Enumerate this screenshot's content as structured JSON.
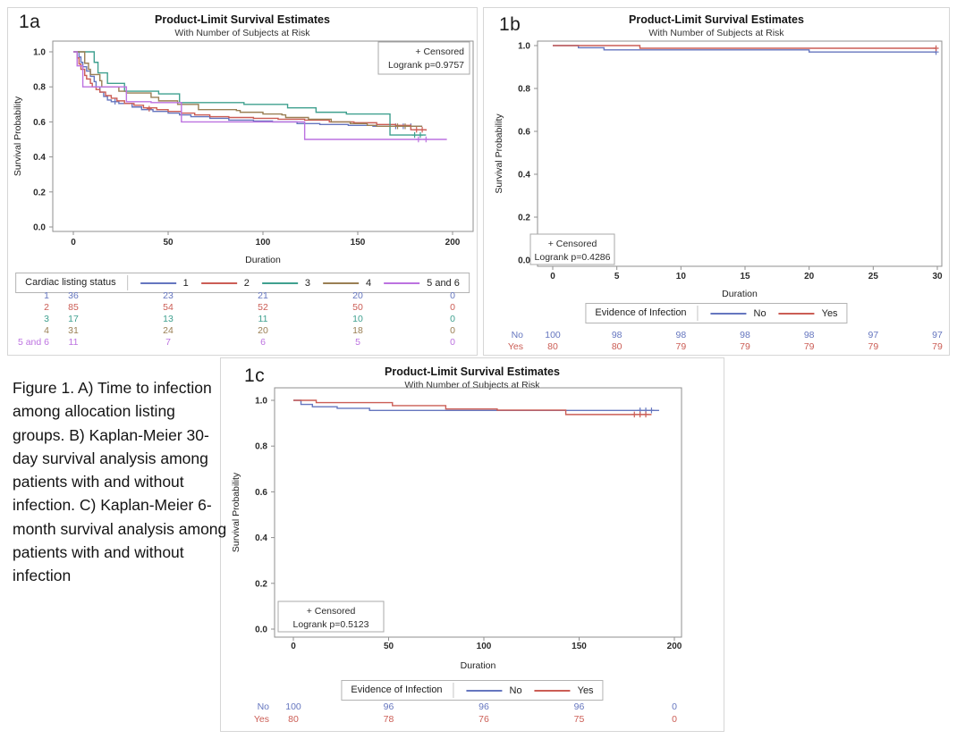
{
  "figure_caption": "Figure 1. A) Time to infection among allocation listing groups. B) Kaplan-Meier 30-day survival analysis among patients with and without infection. C) Kaplan-Meier 6-month survival analysis among patients with and without infection",
  "chart_data": [
    {
      "type": "line",
      "panel_label": "1a",
      "title": "Product-Limit Survival Estimates",
      "subtitle": "With Number of Subjects at Risk",
      "xlabel": "Duration",
      "ylabel": "Survival Probability",
      "xlim": [
        0,
        200
      ],
      "xticks": [
        0,
        50,
        100,
        150,
        200
      ],
      "ylim": [
        0,
        1
      ],
      "yticks": [
        1.0,
        0.8,
        0.6,
        0.4,
        0.2,
        0.0
      ],
      "grid": false,
      "censored_label": "+ Censored",
      "logrank_label": "Logrank p=0.9757",
      "inset_position": "top-right",
      "legend_position": "bottom",
      "legend_title": "Cardiac listing status",
      "series": [
        {
          "name": "1",
          "color": "#6576bf",
          "steps": [
            [
              0,
              1.0
            ],
            [
              3,
              0.97
            ],
            [
              4,
              0.94
            ],
            [
              5,
              0.915
            ],
            [
              7,
              0.89
            ],
            [
              9,
              0.86
            ],
            [
              11,
              0.83
            ],
            [
              12,
              0.8
            ],
            [
              14,
              0.77
            ],
            [
              16,
              0.745
            ],
            [
              18,
              0.725
            ],
            [
              20,
              0.715
            ],
            [
              24,
              0.705
            ],
            [
              31,
              0.685
            ],
            [
              36,
              0.67
            ],
            [
              42,
              0.66
            ],
            [
              50,
              0.65
            ],
            [
              56,
              0.64
            ],
            [
              62,
              0.63
            ],
            [
              72,
              0.62
            ],
            [
              82,
              0.61
            ],
            [
              95,
              0.605
            ],
            [
              105,
              0.6
            ],
            [
              118,
              0.59
            ],
            [
              130,
              0.585
            ],
            [
              145,
              0.58
            ],
            [
              158,
              0.575
            ],
            [
              184,
              0.575
            ]
          ],
          "censors": [
            [
              22,
              0.715
            ],
            [
              170,
              0.575
            ],
            [
              174,
              0.575
            ],
            [
              178,
              0.575
            ]
          ]
        },
        {
          "name": "2",
          "color": "#cb5d55",
          "steps": [
            [
              0,
              1.0
            ],
            [
              2,
              0.965
            ],
            [
              3,
              0.93
            ],
            [
              4,
              0.9
            ],
            [
              6,
              0.865
            ],
            [
              7,
              0.845
            ],
            [
              9,
              0.82
            ],
            [
              10,
              0.8
            ],
            [
              12,
              0.785
            ],
            [
              14,
              0.77
            ],
            [
              17,
              0.75
            ],
            [
              20,
              0.735
            ],
            [
              23,
              0.72
            ],
            [
              27,
              0.705
            ],
            [
              32,
              0.695
            ],
            [
              37,
              0.68
            ],
            [
              44,
              0.67
            ],
            [
              50,
              0.66
            ],
            [
              57,
              0.65
            ],
            [
              64,
              0.64
            ],
            [
              72,
              0.63
            ],
            [
              82,
              0.625
            ],
            [
              95,
              0.62
            ],
            [
              108,
              0.615
            ],
            [
              122,
              0.61
            ],
            [
              135,
              0.6
            ],
            [
              148,
              0.595
            ],
            [
              160,
              0.585
            ],
            [
              170,
              0.58
            ],
            [
              178,
              0.555
            ],
            [
              186,
              0.55
            ]
          ],
          "censors": [
            [
              40,
              0.675
            ],
            [
              181,
              0.555
            ],
            [
              184,
              0.555
            ]
          ]
        },
        {
          "name": "3",
          "color": "#3fa08f",
          "steps": [
            [
              0,
              1.0
            ],
            [
              10,
              1.0
            ],
            [
              11,
              0.94
            ],
            [
              13,
              0.88
            ],
            [
              17,
              0.88
            ],
            [
              18,
              0.82
            ],
            [
              26,
              0.82
            ],
            [
              27,
              0.775
            ],
            [
              43,
              0.775
            ],
            [
              45,
              0.76
            ],
            [
              54,
              0.76
            ],
            [
              56,
              0.71
            ],
            [
              88,
              0.71
            ],
            [
              90,
              0.7
            ],
            [
              111,
              0.7
            ],
            [
              113,
              0.68
            ],
            [
              126,
              0.68
            ],
            [
              128,
              0.655
            ],
            [
              142,
              0.655
            ],
            [
              144,
              0.645
            ],
            [
              165,
              0.645
            ],
            [
              167,
              0.525
            ],
            [
              186,
              0.525
            ]
          ],
          "censors": [
            [
              180,
              0.525
            ],
            [
              183,
              0.525
            ]
          ]
        },
        {
          "name": "4",
          "color": "#9a7f54",
          "steps": [
            [
              0,
              1.0
            ],
            [
              5,
              1.0
            ],
            [
              6,
              0.935
            ],
            [
              8,
              0.9
            ],
            [
              9,
              0.87
            ],
            [
              13,
              0.87
            ],
            [
              14,
              0.835
            ],
            [
              15,
              0.8
            ],
            [
              22,
              0.8
            ],
            [
              24,
              0.775
            ],
            [
              28,
              0.765
            ],
            [
              39,
              0.765
            ],
            [
              41,
              0.74
            ],
            [
              45,
              0.72
            ],
            [
              53,
              0.72
            ],
            [
              55,
              0.7
            ],
            [
              64,
              0.7
            ],
            [
              66,
              0.67
            ],
            [
              86,
              0.665
            ],
            [
              88,
              0.655
            ],
            [
              100,
              0.645
            ],
            [
              110,
              0.64
            ],
            [
              112,
              0.625
            ],
            [
              124,
              0.615
            ],
            [
              136,
              0.6
            ],
            [
              146,
              0.59
            ],
            [
              155,
              0.58
            ],
            [
              160,
              0.575
            ],
            [
              184,
              0.575
            ]
          ],
          "censors": [
            [
              171,
              0.575
            ],
            [
              175,
              0.575
            ]
          ]
        },
        {
          "name": "5 and 6",
          "color": "#bc72e0",
          "steps": [
            [
              0,
              1.0
            ],
            [
              2,
              0.92
            ],
            [
              4,
              0.92
            ],
            [
              5,
              0.8
            ],
            [
              26,
              0.8
            ],
            [
              28,
              0.715
            ],
            [
              40,
              0.715
            ],
            [
              41,
              0.71
            ],
            [
              55,
              0.71
            ],
            [
              57,
              0.6
            ],
            [
              120,
              0.6
            ],
            [
              122,
              0.5
            ],
            [
              197,
              0.5
            ]
          ],
          "censors": [
            [
              182,
              0.5
            ],
            [
              186,
              0.5
            ]
          ]
        }
      ],
      "at_risk": {
        "times": [
          0,
          50,
          100,
          150,
          200
        ],
        "rows": [
          {
            "label": "1",
            "color": "#6576bf",
            "values": [
              "36",
              "23",
              "21",
              "20",
              "0"
            ]
          },
          {
            "label": "2",
            "color": "#cb5d55",
            "values": [
              "85",
              "54",
              "52",
              "50",
              "0"
            ]
          },
          {
            "label": "3",
            "color": "#3fa08f",
            "values": [
              "17",
              "13",
              "11",
              "10",
              "0"
            ]
          },
          {
            "label": "4",
            "color": "#9a7f54",
            "values": [
              "31",
              "24",
              "20",
              "18",
              "0"
            ]
          },
          {
            "label": "5 and 6",
            "color": "#bc72e0",
            "values": [
              "11",
              "7",
              "6",
              "5",
              "0"
            ]
          }
        ]
      }
    },
    {
      "type": "line",
      "panel_label": "1b",
      "title": "Product-Limit Survival Estimates",
      "subtitle": "With Number of Subjects at Risk",
      "xlabel": "Duration",
      "ylabel": "Survival Probability",
      "xlim": [
        0,
        30
      ],
      "xticks": [
        0,
        5,
        10,
        15,
        20,
        25,
        30
      ],
      "ylim": [
        0,
        1
      ],
      "yticks": [
        1.0,
        0.8,
        0.6,
        0.4,
        0.2,
        0.0
      ],
      "grid": false,
      "censored_label": "+ Censored",
      "logrank_label": "Logrank p=0.4286",
      "inset_position": "bottom-left",
      "legend_position": "bottom",
      "legend_title": "Evidence of Infection",
      "series": [
        {
          "name": "No",
          "color": "#6576bf",
          "steps": [
            [
              0,
              1.0
            ],
            [
              2,
              0.99
            ],
            [
              4,
              0.98
            ],
            [
              20,
              0.97
            ],
            [
              29.9,
              0.97
            ]
          ],
          "censors": [
            [
              29.9,
              0.97
            ]
          ]
        },
        {
          "name": "Yes",
          "color": "#cb5d55",
          "steps": [
            [
              0,
              1.0
            ],
            [
              6.8,
              0.9875
            ],
            [
              29.9,
              0.9875
            ]
          ],
          "censors": [
            [
              29.9,
              0.9875
            ]
          ]
        }
      ],
      "at_risk": {
        "times": [
          0,
          5,
          10,
          15,
          20,
          25,
          30
        ],
        "rows": [
          {
            "label": "No",
            "color": "#6576bf",
            "values": [
              "100",
              "98",
              "98",
              "98",
              "98",
              "97",
              "97"
            ]
          },
          {
            "label": "Yes",
            "color": "#cb5d55",
            "values": [
              "80",
              "80",
              "79",
              "79",
              "79",
              "79",
              "79"
            ]
          }
        ]
      }
    },
    {
      "type": "line",
      "panel_label": "1c",
      "title": "Product-Limit Survival Estimates",
      "subtitle": "With Number of Subjects at Risk",
      "xlabel": "Duration",
      "ylabel": "Survival Probability",
      "xlim": [
        0,
        200
      ],
      "xticks": [
        0,
        50,
        100,
        150,
        200
      ],
      "ylim": [
        0,
        1
      ],
      "yticks": [
        1.0,
        0.8,
        0.6,
        0.4,
        0.2,
        0.0
      ],
      "grid": false,
      "censored_label": "+ Censored",
      "logrank_label": "Logrank p=0.5123",
      "inset_position": "bottom-left",
      "legend_position": "bottom",
      "legend_title": "Evidence of Infection",
      "series": [
        {
          "name": "No",
          "color": "#6576bf",
          "steps": [
            [
              0,
              1.0
            ],
            [
              4,
              0.982
            ],
            [
              10,
              0.972
            ],
            [
              23,
              0.965
            ],
            [
              40,
              0.956
            ],
            [
              192,
              0.956
            ]
          ],
          "censors": [
            [
              182,
              0.956
            ],
            [
              185,
              0.956
            ],
            [
              188,
              0.956
            ]
          ]
        },
        {
          "name": "Yes",
          "color": "#cb5d55",
          "steps": [
            [
              0,
              1.0
            ],
            [
              12,
              0.99
            ],
            [
              52,
              0.977
            ],
            [
              80,
              0.962
            ],
            [
              107,
              0.957
            ],
            [
              143,
              0.938
            ],
            [
              188,
              0.938
            ]
          ],
          "censors": [
            [
              179,
              0.938
            ],
            [
              182,
              0.938
            ],
            [
              185,
              0.938
            ]
          ]
        }
      ],
      "at_risk": {
        "times": [
          0,
          50,
          100,
          150,
          200
        ],
        "rows": [
          {
            "label": "No",
            "color": "#6576bf",
            "values": [
              "100",
              "96",
              "96",
              "96",
              "0"
            ]
          },
          {
            "label": "Yes",
            "color": "#cb5d55",
            "values": [
              "80",
              "78",
              "76",
              "75",
              "0"
            ]
          }
        ]
      }
    }
  ]
}
